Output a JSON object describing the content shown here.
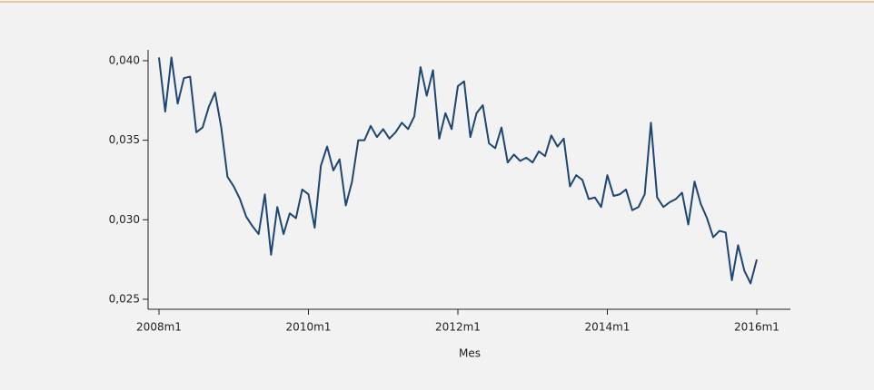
{
  "chart_data": {
    "type": "line",
    "x_label": "Mes",
    "x": [
      576,
      577,
      578,
      579,
      580,
      581,
      582,
      583,
      584,
      585,
      586,
      587,
      588,
      589,
      590,
      591,
      592,
      593,
      594,
      595,
      596,
      597,
      598,
      599,
      600,
      601,
      602,
      603,
      604,
      605,
      606,
      607,
      608,
      609,
      610,
      611,
      612,
      613,
      614,
      615,
      616,
      617,
      618,
      619,
      620,
      621,
      622,
      623,
      624,
      625,
      626,
      627,
      628,
      629,
      630,
      631,
      632,
      633,
      634,
      635,
      636,
      637,
      638,
      639,
      640,
      641,
      642,
      643,
      644,
      645,
      646,
      647,
      648,
      649,
      650,
      651,
      652,
      653,
      654,
      655,
      656,
      657,
      658,
      659,
      660,
      661,
      662,
      663,
      664,
      665,
      666,
      667,
      668,
      669,
      670,
      671,
      672
    ],
    "values": [
      0.0402,
      0.0368,
      0.0402,
      0.0373,
      0.0389,
      0.039,
      0.0355,
      0.0358,
      0.0371,
      0.038,
      0.0358,
      0.0327,
      0.0321,
      0.0313,
      0.0302,
      0.0296,
      0.0291,
      0.0316,
      0.0278,
      0.0308,
      0.0291,
      0.0304,
      0.0301,
      0.0319,
      0.0316,
      0.0295,
      0.0334,
      0.0346,
      0.0331,
      0.0338,
      0.0309,
      0.0324,
      0.035,
      0.035,
      0.0359,
      0.0352,
      0.0357,
      0.0351,
      0.0355,
      0.0361,
      0.0357,
      0.0365,
      0.0396,
      0.0378,
      0.0394,
      0.0351,
      0.0367,
      0.0357,
      0.0384,
      0.0387,
      0.0352,
      0.0367,
      0.0372,
      0.0348,
      0.0345,
      0.0358,
      0.0336,
      0.0341,
      0.0337,
      0.0339,
      0.0336,
      0.0343,
      0.034,
      0.0353,
      0.0346,
      0.0351,
      0.0321,
      0.0328,
      0.0325,
      0.0313,
      0.0314,
      0.0308,
      0.0328,
      0.0315,
      0.0316,
      0.0319,
      0.0306,
      0.0308,
      0.0316,
      0.0361,
      0.0314,
      0.0308,
      0.0311,
      0.0313,
      0.0317,
      0.0297,
      0.0324,
      0.031,
      0.0301,
      0.0289,
      0.0293,
      0.0292,
      0.0262,
      0.0284,
      0.0268,
      0.026,
      0.0275
    ],
    "color": "#1f4670",
    "xlim": [
      574.25,
      677.4
    ],
    "xticks": [
      {
        "value": 576,
        "label": "2008m1"
      },
      {
        "value": 600,
        "label": "2010m1"
      },
      {
        "value": 624,
        "label": "2012m1"
      },
      {
        "value": 648,
        "label": "2014m1"
      },
      {
        "value": 672,
        "label": "2016m1"
      }
    ],
    "ylim": [
      0.02437,
      0.04068
    ],
    "yticks": [
      {
        "value": 0.025,
        "label": "0,025"
      },
      {
        "value": 0.03,
        "label": "0,030"
      },
      {
        "value": 0.035,
        "label": "0,035"
      },
      {
        "value": 0.04,
        "label": "0,040"
      }
    ],
    "grid": false
  }
}
